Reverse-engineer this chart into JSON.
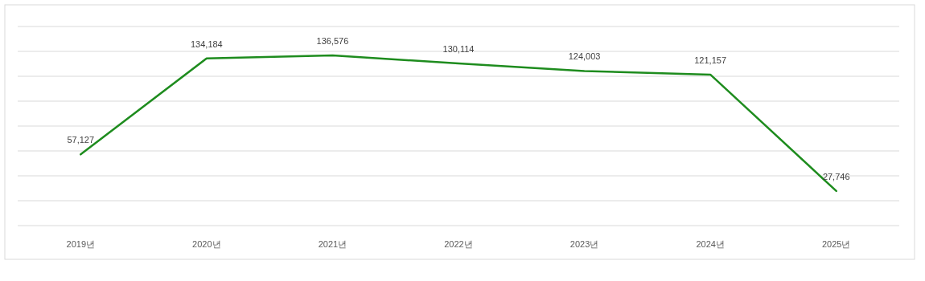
{
  "chart_data": {
    "type": "line",
    "categories": [
      "2019년",
      "2020년",
      "2021년",
      "2022년",
      "2023년",
      "2024년",
      "2025년"
    ],
    "series": [
      {
        "color": "#1e8c1e",
        "values": [
          57127,
          134184,
          136576,
          130114,
          124003,
          121157,
          27746
        ],
        "value_labels": [
          "57,127",
          "134,184",
          "136,576",
          "130,114",
          "124,003",
          "121,157",
          "27,746"
        ]
      }
    ],
    "grid": "y",
    "tick_labels": "x",
    "marker": "none",
    "line_style": "solid"
  }
}
